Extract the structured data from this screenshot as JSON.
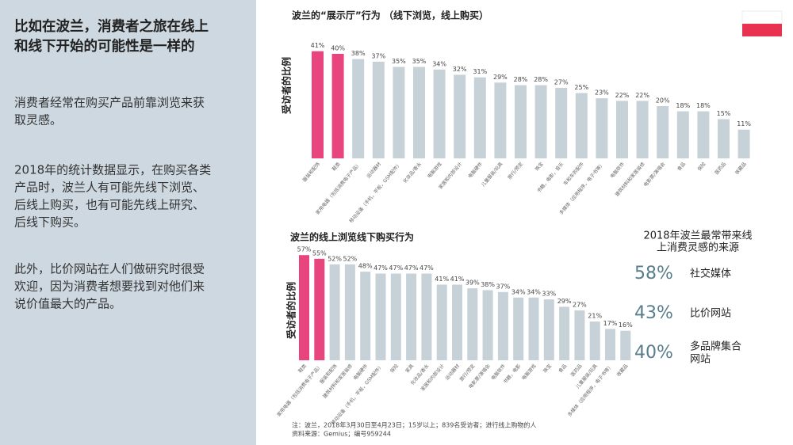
{
  "left": {
    "title": [
      "比如在波兰，消费者之旅在线上",
      "和线下开始的可能性是一样的"
    ],
    "paragraphs": [
      [
        "消费者经常在购买产品前靠浏览来获",
        "取灵感。"
      ],
      [
        "2018年的统计数据显示，在购买各类",
        "产品时，波兰人有可能先线下浏览、",
        "后线上购买，也有可能先线上研究、",
        "后线下购买。"
      ],
      [
        "此外，比价网站在人们做研究时很受",
        "欢迎，因为消费者想要找到对他们来",
        "说价值最大的产品。"
      ]
    ]
  },
  "chart_data": [
    {
      "type": "bar",
      "title": "波兰的“展示厅”行为 （线下浏览，线上购买）",
      "ylabel": "受访者的比例",
      "categories": [
        "服装和配饰",
        "鞋类",
        "家用电器（包括消费电子产品）",
        "运动器材",
        "移动设备（手机，平板，GSM配件）",
        "化妆品/香水",
        "电脑游戏",
        "家居和内部设计",
        "电脑硬件",
        "儿童服装/玩具",
        "旅行/预定",
        "珠宝",
        "书籍，电影，音乐",
        "车和车的配件",
        "多媒体（应用程序，电子书等）",
        "电脑软件",
        "建筑材料和家居装修",
        "电影票/演唱会",
        "食品",
        "保险",
        "医药品",
        "收藏品"
      ],
      "values": [
        41,
        40,
        38,
        37,
        35,
        35,
        34,
        32,
        31,
        29,
        28,
        28,
        27,
        25,
        23,
        22,
        22,
        20,
        18,
        18,
        15,
        11
      ],
      "value_labels": [
        "41%",
        "40%",
        "38%",
        "37%",
        "35%",
        "35%",
        "34%",
        "32%",
        "31%",
        "29%",
        "28%",
        "28%",
        "27%",
        "25%",
        "23%",
        "22%",
        "22%",
        "20%",
        "18%",
        "18%",
        "15%",
        "11%"
      ],
      "colors": [
        "#e8457f",
        "#e8457f",
        "#c7d1d8",
        "#c7d1d8",
        "#c7d1d8",
        "#c7d1d8",
        "#c7d1d8",
        "#c7d1d8",
        "#c7d1d8",
        "#c7d1d8",
        "#c7d1d8",
        "#c7d1d8",
        "#c7d1d8",
        "#c7d1d8",
        "#c7d1d8",
        "#c7d1d8",
        "#c7d1d8",
        "#c7d1d8",
        "#c7d1d8",
        "#c7d1d8",
        "#c7d1d8",
        "#c7d1d8"
      ]
    },
    {
      "type": "bar",
      "title": "波兰的线上浏览线下购买行为",
      "ylabel": "受访者的比例",
      "categories": [
        "鞋类",
        "家用电器（包括消费电子产品）",
        "服装和配饰",
        "建筑材料和家居装修",
        "电脑硬件",
        "移动设备（手机，平板，GSM配件）",
        "保险",
        "家具",
        "化妆品/香水",
        "家居和内部设计",
        "运动器材",
        "旅行/预定",
        "电影票/演唱会",
        "电脑软件",
        "书籍，电影",
        "电脑游戏",
        "珠宝",
        "食品",
        "医药品",
        "儿童服装/玩具",
        "多媒体（应用程序，电子书等）",
        "收藏品"
      ],
      "values": [
        57,
        55,
        52,
        52,
        48,
        47,
        47,
        47,
        47,
        41,
        41,
        39,
        38,
        37,
        34,
        34,
        33,
        29,
        27,
        21,
        17,
        16
      ],
      "value_labels": [
        "57%",
        "55%",
        "52%",
        "52%",
        "48%",
        "47%",
        "47%",
        "47%",
        "47%",
        "41%",
        "41%",
        "39%",
        "38%",
        "37%",
        "34%",
        "34%",
        "33%",
        "29%",
        "27%",
        "21%",
        "17%",
        "16%"
      ],
      "colors": [
        "#e8457f",
        "#e8457f",
        "#c7d1d8",
        "#c7d1d8",
        "#c7d1d8",
        "#c7d1d8",
        "#c7d1d8",
        "#c7d1d8",
        "#c7d1d8",
        "#c7d1d8",
        "#c7d1d8",
        "#c7d1d8",
        "#c7d1d8",
        "#c7d1d8",
        "#c7d1d8",
        "#c7d1d8",
        "#c7d1d8",
        "#c7d1d8",
        "#c7d1d8",
        "#c7d1d8",
        "#c7d1d8",
        "#c7d1d8"
      ]
    }
  ],
  "sources": {
    "title": [
      "2018年波兰最常带来线",
      "上消费灵感的来源"
    ],
    "items": [
      {
        "value": "58%",
        "label": [
          "社交媒体"
        ]
      },
      {
        "value": "43%",
        "label": [
          "比价网站"
        ]
      },
      {
        "value": "40%",
        "label": [
          "多品牌集合",
          "网站"
        ]
      }
    ]
  },
  "footnote": [
    "注：波兰，2018年3月30日至4月23日；15岁以上；839名受访者；进行线上购物的人",
    "资料来源：Gemius；编号959244"
  ]
}
